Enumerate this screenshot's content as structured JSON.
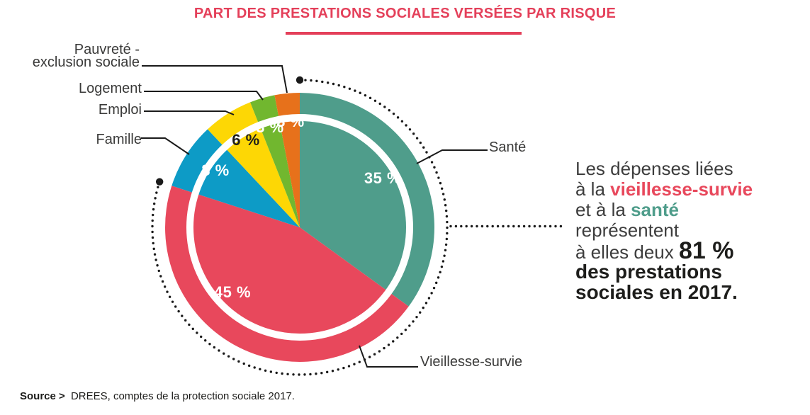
{
  "title": {
    "text": "PART DES PRESTATIONS SOCIALES VERSÉES PAR RISQUE",
    "color": "#E4405A"
  },
  "chart_data": {
    "type": "pie",
    "title": "PART DES PRESTATIONS SOCIALES VERSÉES PAR RISQUE",
    "unit": "%",
    "start_angle_deg": 0,
    "direction": "clockwise",
    "slices": [
      {
        "name": "Santé",
        "value": 35,
        "pct_label": "35 %",
        "color": "#4F9D8B",
        "pct_text_color": "#FFFFFF"
      },
      {
        "name": "Vieillesse-survie",
        "value": 45,
        "pct_label": "45 %",
        "color": "#E8485C",
        "pct_text_color": "#FFFFFF"
      },
      {
        "name": "Famille",
        "value": 8,
        "pct_label": "8 %",
        "color": "#0D9BC6",
        "pct_text_color": "#FFFFFF"
      },
      {
        "name": "Emploi",
        "value": 6,
        "pct_label": "6 %",
        "color": "#FDD705",
        "pct_text_color": "#1D1D1B"
      },
      {
        "name": "Logement",
        "value": 3,
        "pct_label": "3 %",
        "color": "#71B72F",
        "pct_text_color": "#FFFFFF"
      },
      {
        "name": "Pauvreté - exclusion sociale",
        "value": 3,
        "pct_label": "3 %",
        "color": "#E7711B",
        "pct_text_color": "#FFFFFF"
      }
    ],
    "highlight": {
      "slices": [
        "Vieillesse-survie",
        "Santé"
      ],
      "combined_value": 81,
      "marker": "dotted-arc"
    }
  },
  "labels": {
    "pauvrete_line1": "Pauvreté -",
    "pauvrete_line2": "exclusion sociale",
    "logement": "Logement",
    "emploi": "Emploi",
    "famille": "Famille",
    "sante": "Santé",
    "vieillesse": "Vieillesse-survie"
  },
  "annotation": {
    "line1": "Les dépenses liées",
    "line2_prefix": "à la ",
    "line2_highlight": "vieillesse-survie",
    "line3_prefix": "et à la ",
    "line3_highlight": "santé",
    "line4": "représentent",
    "line5_prefix": "à elles deux ",
    "line5_big": "81 %",
    "line6": "des prestations",
    "line7": "sociales en 2017.",
    "highlight_red": "#E8485C",
    "highlight_teal": "#4F9D8B"
  },
  "source": {
    "label": "Source >",
    "text": " DREES, comptes de la protection sociale 2017."
  }
}
